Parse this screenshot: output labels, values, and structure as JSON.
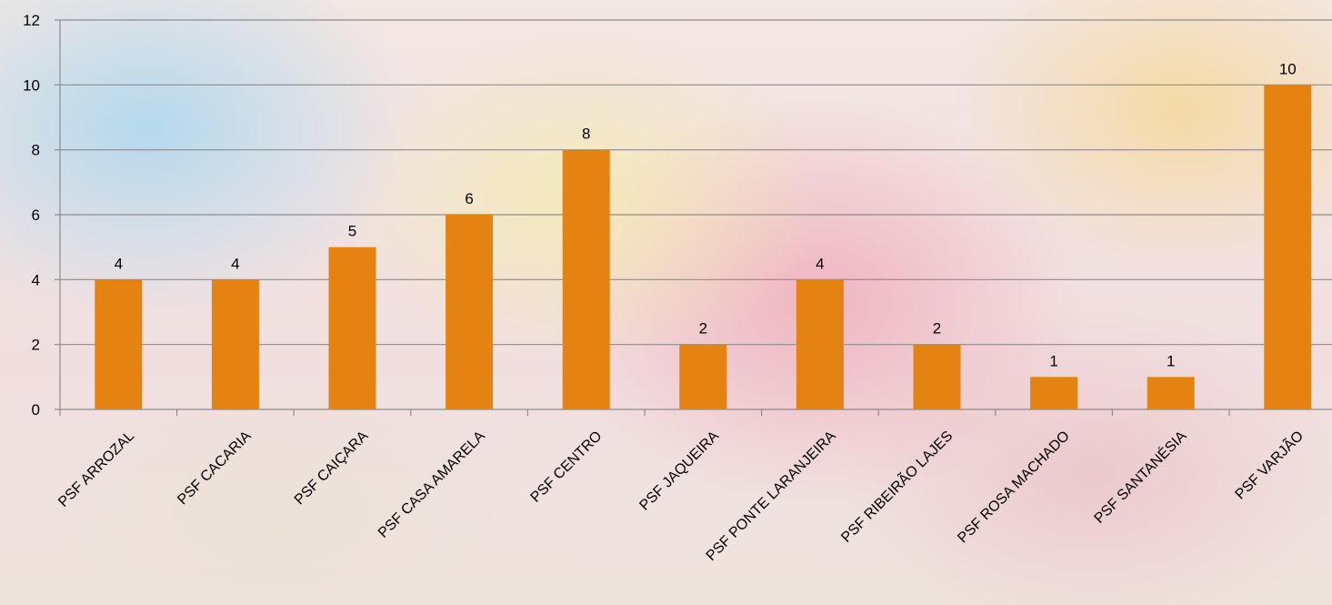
{
  "chart_data": {
    "type": "bar",
    "categories": [
      "PSF ARROZAL",
      "PSF CACARIA",
      "PSF CAIÇARA",
      "PSF CASA AMARELA",
      "PSF CENTRO",
      "PSF JAQUEIRA",
      "PSF PONTE LARANJEIRA",
      "PSF RIBEIRÃO LAJES",
      "PSF ROSA MACHADO",
      "PSF SANTANÉSIA",
      "PSF VARJÃO"
    ],
    "values": [
      4,
      4,
      5,
      6,
      8,
      2,
      4,
      2,
      1,
      1,
      10
    ],
    "data_labels": [
      "4",
      "4",
      "5",
      "6",
      "8",
      "2",
      "4",
      "2",
      "1",
      "1",
      "10"
    ],
    "title": "",
    "xlabel": "",
    "ylabel": "",
    "ylim": [
      0,
      12
    ],
    "yticks": [
      0,
      2,
      4,
      6,
      8,
      10,
      12
    ],
    "ytick_labels": [
      "0",
      "2",
      "4",
      "6",
      "8",
      "10",
      "12"
    ],
    "grid": "horizontal",
    "legend": "none",
    "bar_color": "#E48212"
  }
}
